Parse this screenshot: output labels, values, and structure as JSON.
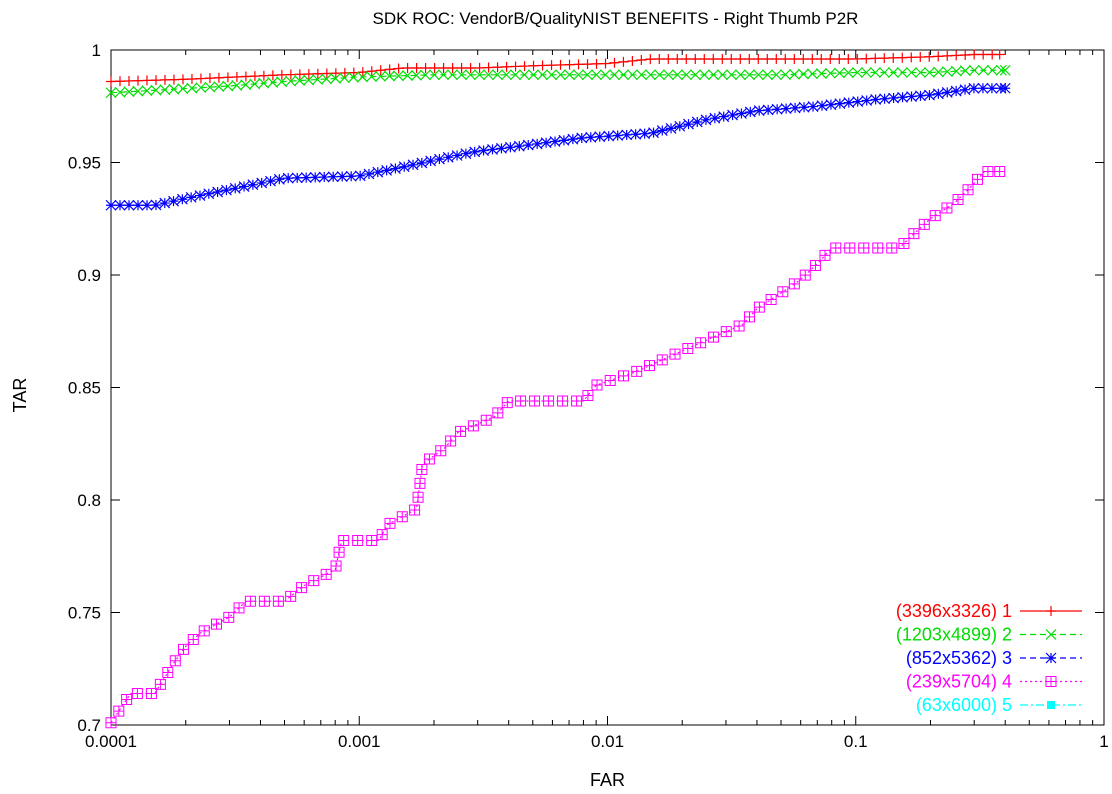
{
  "chart_data": {
    "type": "line",
    "title": "SDK ROC: VendorB/QualityNIST BENEFITS - Right Thumb P2R",
    "xlabel": "FAR",
    "ylabel": "TAR",
    "xscale": "log",
    "xlim": [
      0.0001,
      1
    ],
    "ylim": [
      0.7,
      1.0
    ],
    "xticks": [
      0.0001,
      0.001,
      0.01,
      0.1,
      1
    ],
    "xtick_labels": [
      "0.0001",
      "0.001",
      "0.01",
      "0.1",
      "1"
    ],
    "yticks": [
      0.7,
      0.75,
      0.8,
      0.85,
      0.9,
      0.95,
      1.0
    ],
    "ytick_labels": [
      "0.7",
      "0.75",
      "0.8",
      "0.85",
      "0.9",
      "0.95",
      "1"
    ],
    "grid": false,
    "legend_position": "bottom-right",
    "series": [
      {
        "name": "(3396x3326) 1",
        "color": "#ff0000",
        "marker": "plus",
        "dash": "solid",
        "points": [
          [
            0.0001,
            0.986
          ],
          [
            0.0002,
            0.987
          ],
          [
            0.0005,
            0.989
          ],
          [
            0.001,
            0.99
          ],
          [
            0.0015,
            0.992
          ],
          [
            0.003,
            0.992
          ],
          [
            0.005,
            0.993
          ],
          [
            0.01,
            0.994
          ],
          [
            0.015,
            0.996
          ],
          [
            0.05,
            0.996
          ],
          [
            0.1,
            0.996
          ],
          [
            0.2,
            0.997
          ],
          [
            0.3,
            0.998
          ],
          [
            0.38,
            0.998
          ]
        ]
      },
      {
        "name": "(1203x4899) 2",
        "color": "#00dd00",
        "marker": "x",
        "dash": "dashed",
        "points": [
          [
            0.0001,
            0.981
          ],
          [
            0.0003,
            0.984
          ],
          [
            0.0005,
            0.986
          ],
          [
            0.001,
            0.988
          ],
          [
            0.002,
            0.989
          ],
          [
            0.005,
            0.989
          ],
          [
            0.01,
            0.989
          ],
          [
            0.05,
            0.989
          ],
          [
            0.1,
            0.99
          ],
          [
            0.2,
            0.99
          ],
          [
            0.3,
            0.991
          ],
          [
            0.4,
            0.991
          ]
        ]
      },
      {
        "name": "(852x5362) 3",
        "color": "#0000ff",
        "marker": "star",
        "dash": "dashed",
        "points": [
          [
            0.0001,
            0.931
          ],
          [
            0.00015,
            0.931
          ],
          [
            0.0002,
            0.934
          ],
          [
            0.0003,
            0.938
          ],
          [
            0.0005,
            0.943
          ],
          [
            0.001,
            0.944
          ],
          [
            0.0015,
            0.948
          ],
          [
            0.002,
            0.951
          ],
          [
            0.003,
            0.955
          ],
          [
            0.005,
            0.958
          ],
          [
            0.008,
            0.961
          ],
          [
            0.015,
            0.963
          ],
          [
            0.025,
            0.969
          ],
          [
            0.04,
            0.973
          ],
          [
            0.07,
            0.975
          ],
          [
            0.12,
            0.978
          ],
          [
            0.2,
            0.98
          ],
          [
            0.3,
            0.983
          ],
          [
            0.4,
            0.983
          ]
        ]
      },
      {
        "name": "(239x5704) 4",
        "color": "#ff00ff",
        "marker": "box",
        "dash": "dotted",
        "points": [
          [
            0.0001,
            0.701
          ],
          [
            0.00012,
            0.714
          ],
          [
            0.00015,
            0.714
          ],
          [
            0.00018,
            0.728
          ],
          [
            0.0002,
            0.735
          ],
          [
            0.00023,
            0.741
          ],
          [
            0.0003,
            0.748
          ],
          [
            0.00035,
            0.755
          ],
          [
            0.0005,
            0.755
          ],
          [
            0.0006,
            0.762
          ],
          [
            0.0008,
            0.769
          ],
          [
            0.00085,
            0.782
          ],
          [
            0.0012,
            0.782
          ],
          [
            0.0013,
            0.789
          ],
          [
            0.0017,
            0.796
          ],
          [
            0.0018,
            0.816
          ],
          [
            0.0022,
            0.823
          ],
          [
            0.0025,
            0.83
          ],
          [
            0.0035,
            0.837
          ],
          [
            0.004,
            0.844
          ],
          [
            0.008,
            0.844
          ],
          [
            0.009,
            0.851
          ],
          [
            0.013,
            0.857
          ],
          [
            0.018,
            0.864
          ],
          [
            0.025,
            0.871
          ],
          [
            0.035,
            0.878
          ],
          [
            0.04,
            0.885
          ],
          [
            0.05,
            0.892
          ],
          [
            0.06,
            0.898
          ],
          [
            0.07,
            0.905
          ],
          [
            0.08,
            0.912
          ],
          [
            0.15,
            0.912
          ],
          [
            0.17,
            0.918
          ],
          [
            0.2,
            0.925
          ],
          [
            0.25,
            0.932
          ],
          [
            0.29,
            0.939
          ],
          [
            0.33,
            0.946
          ],
          [
            0.38,
            0.946
          ]
        ]
      },
      {
        "name": "(63x6000) 5",
        "color": "#00ffff",
        "marker": "filled-square",
        "dash": "dashdot",
        "points": []
      }
    ]
  }
}
